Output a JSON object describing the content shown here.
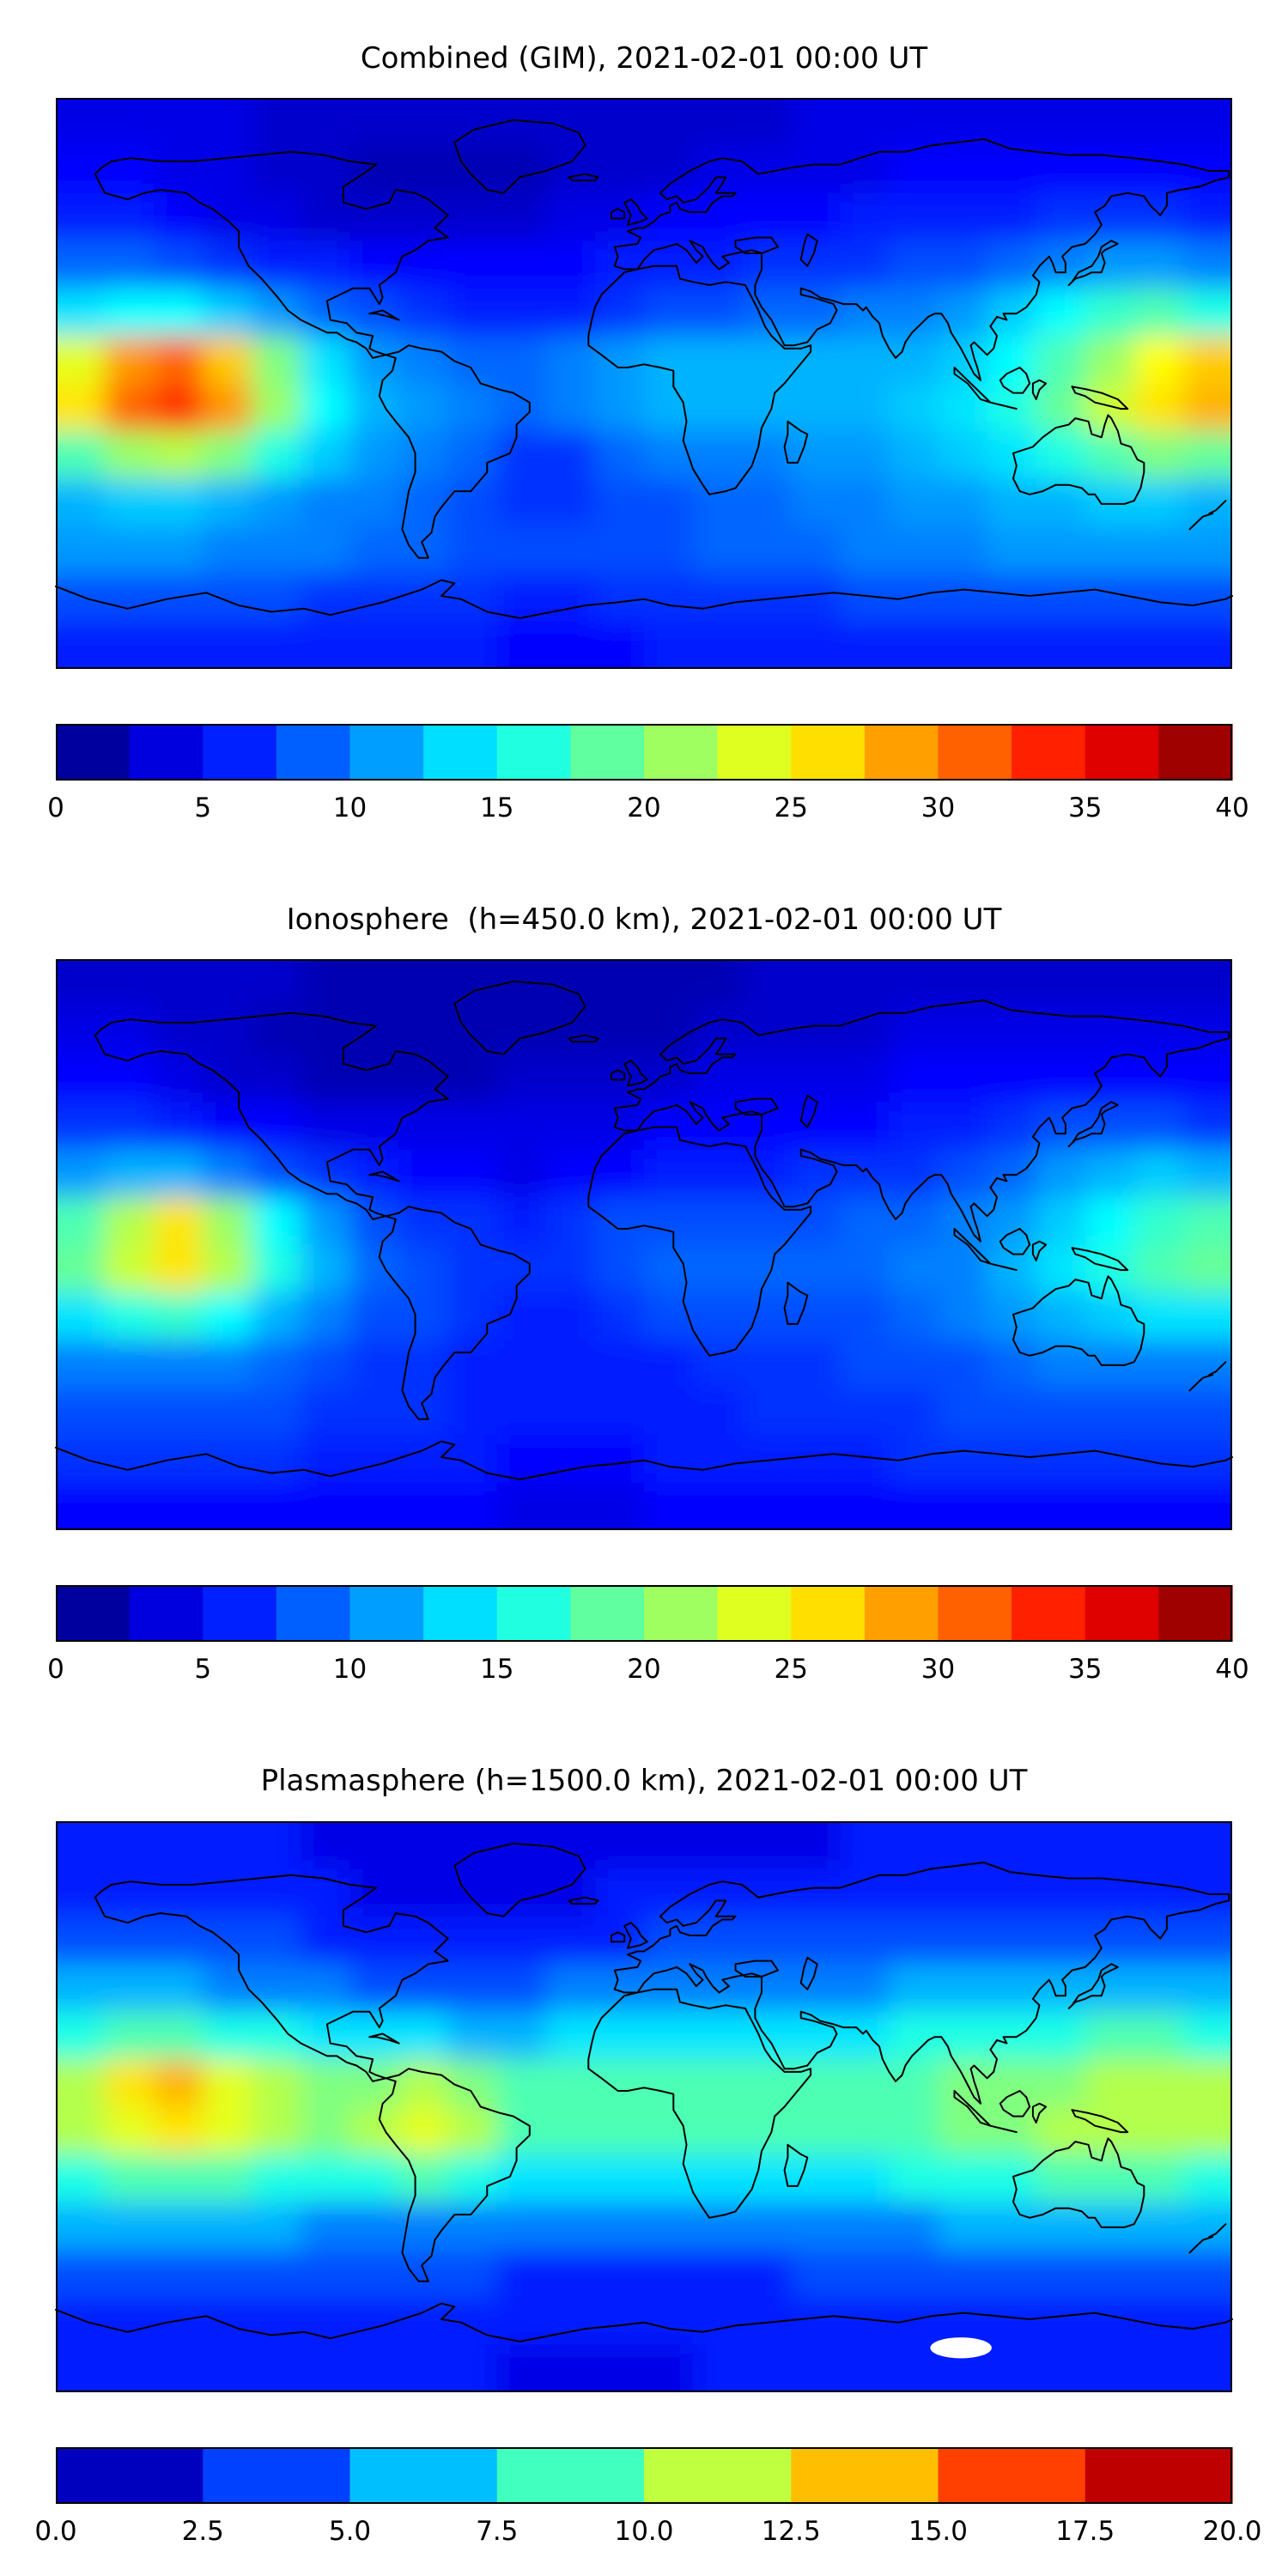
{
  "colors": {
    "background": "#ffffff",
    "coastline": "#000000",
    "text": "#000000"
  },
  "chart_data": [
    {
      "type": "heatmap",
      "title": "Combined (GIM), 2021-02-01 00:00 UT",
      "colormap": "jet",
      "projection": "equirectangular",
      "lon_range": [
        -180,
        180
      ],
      "lat_range": [
        -90,
        90
      ],
      "value_range": [
        0,
        40
      ],
      "contour_step": 2.5,
      "colorbar_segments": 16,
      "colorbar_ticks": [
        "0",
        "5",
        "10",
        "15",
        "20",
        "25",
        "30",
        "35",
        "40"
      ],
      "grid_step_deg": 15,
      "grid_rows_lat_90N_to_90S": [
        [
          4,
          4,
          4,
          4,
          3,
          3,
          3,
          3,
          3,
          3,
          3,
          3,
          3,
          3,
          3,
          4,
          4,
          4,
          4,
          4,
          4,
          4,
          4,
          4
        ],
        [
          5,
          5,
          4,
          4,
          3,
          3,
          2,
          2,
          2,
          2,
          3,
          3,
          3,
          4,
          4,
          4,
          4,
          5,
          5,
          5,
          5,
          5,
          5,
          5
        ],
        [
          6,
          6,
          5,
          4,
          4,
          3,
          3,
          3,
          3,
          3,
          4,
          4,
          5,
          5,
          5,
          5,
          6,
          6,
          6,
          6,
          7,
          7,
          7,
          6
        ],
        [
          9,
          9,
          8,
          7,
          6,
          6,
          5,
          5,
          5,
          5,
          5,
          6,
          6,
          6,
          7,
          7,
          7,
          8,
          8,
          9,
          10,
          11,
          11,
          10
        ],
        [
          14,
          15,
          15,
          13,
          11,
          9,
          8,
          7,
          6,
          6,
          6,
          7,
          8,
          8,
          9,
          9,
          10,
          10,
          11,
          13,
          15,
          17,
          18,
          16
        ],
        [
          24,
          29,
          31,
          27,
          20,
          14,
          11,
          10,
          9,
          9,
          10,
          11,
          12,
          12,
          12,
          12,
          12,
          12,
          13,
          15,
          18,
          21,
          25,
          27
        ],
        [
          26,
          31,
          33,
          29,
          21,
          15,
          12,
          11,
          10,
          9,
          10,
          11,
          12,
          12,
          12,
          12,
          12,
          13,
          14,
          16,
          19,
          23,
          26,
          28
        ],
        [
          18,
          21,
          22,
          20,
          16,
          13,
          11,
          10,
          9,
          7,
          7,
          9,
          10,
          10,
          10,
          11,
          11,
          12,
          13,
          14,
          16,
          18,
          20,
          19
        ],
        [
          12,
          13,
          13,
          12,
          11,
          10,
          10,
          9,
          8,
          7,
          7,
          8,
          8,
          9,
          9,
          10,
          10,
          11,
          11,
          12,
          12,
          13,
          13,
          12
        ],
        [
          11,
          11,
          11,
          10,
          10,
          10,
          9,
          9,
          8,
          8,
          8,
          8,
          8,
          9,
          9,
          9,
          10,
          10,
          10,
          11,
          11,
          11,
          11,
          11
        ],
        [
          8,
          8,
          8,
          8,
          8,
          7,
          7,
          7,
          7,
          6,
          6,
          7,
          7,
          7,
          7,
          7,
          8,
          8,
          8,
          8,
          8,
          8,
          8,
          8
        ],
        [
          6,
          6,
          6,
          6,
          6,
          6,
          6,
          6,
          6,
          5,
          5,
          5,
          6,
          6,
          6,
          6,
          6,
          6,
          6,
          6,
          6,
          6,
          6,
          6
        ]
      ]
    },
    {
      "type": "heatmap",
      "title": "Ionosphere  (h=450.0 km), 2021-02-01 00:00 UT",
      "colormap": "jet",
      "projection": "equirectangular",
      "lon_range": [
        -180,
        180
      ],
      "lat_range": [
        -90,
        90
      ],
      "value_range": [
        0,
        40
      ],
      "contour_step": 2.5,
      "colorbar_segments": 16,
      "colorbar_ticks": [
        "0",
        "5",
        "10",
        "15",
        "20",
        "25",
        "30",
        "35",
        "40"
      ],
      "grid_step_deg": 15,
      "grid_rows_lat_90N_to_90S": [
        [
          3,
          3,
          3,
          3,
          3,
          2,
          2,
          2,
          2,
          2,
          2,
          2,
          2,
          2,
          3,
          3,
          3,
          3,
          3,
          3,
          3,
          3,
          3,
          3
        ],
        [
          4,
          4,
          3,
          3,
          2,
          2,
          2,
          2,
          2,
          2,
          2,
          2,
          2,
          3,
          3,
          3,
          3,
          4,
          4,
          4,
          4,
          4,
          4,
          4
        ],
        [
          5,
          5,
          4,
          3,
          3,
          2,
          2,
          2,
          2,
          3,
          3,
          3,
          3,
          4,
          4,
          4,
          4,
          5,
          5,
          5,
          5,
          5,
          5,
          5
        ],
        [
          7,
          7,
          6,
          5,
          5,
          4,
          4,
          4,
          4,
          4,
          4,
          4,
          5,
          5,
          5,
          5,
          5,
          6,
          6,
          7,
          8,
          8,
          8,
          7
        ],
        [
          11,
          12,
          12,
          10,
          8,
          7,
          6,
          5,
          5,
          4,
          5,
          5,
          6,
          6,
          6,
          7,
          7,
          7,
          8,
          9,
          11,
          12,
          13,
          12
        ],
        [
          18,
          22,
          26,
          21,
          15,
          11,
          8,
          7,
          7,
          6,
          7,
          8,
          8,
          8,
          8,
          8,
          9,
          9,
          10,
          11,
          13,
          15,
          17,
          18
        ],
        [
          19,
          23,
          26,
          22,
          16,
          12,
          9,
          8,
          7,
          7,
          7,
          8,
          9,
          9,
          9,
          9,
          9,
          10,
          10,
          12,
          14,
          16,
          18,
          19
        ],
        [
          14,
          16,
          17,
          15,
          12,
          10,
          8,
          8,
          7,
          6,
          6,
          7,
          8,
          8,
          8,
          8,
          8,
          9,
          10,
          11,
          12,
          13,
          14,
          14
        ],
        [
          10,
          10,
          10,
          10,
          9,
          8,
          7,
          7,
          6,
          6,
          6,
          6,
          6,
          7,
          7,
          7,
          8,
          8,
          8,
          9,
          10,
          10,
          10,
          10
        ],
        [
          8,
          8,
          8,
          8,
          8,
          7,
          7,
          7,
          6,
          6,
          6,
          6,
          6,
          6,
          7,
          7,
          7,
          7,
          8,
          8,
          8,
          8,
          8,
          8
        ],
        [
          7,
          7,
          7,
          7,
          7,
          6,
          6,
          6,
          6,
          5,
          5,
          5,
          6,
          6,
          6,
          6,
          6,
          7,
          7,
          7,
          7,
          7,
          7,
          7
        ],
        [
          5,
          5,
          5,
          5,
          5,
          5,
          5,
          5,
          5,
          4,
          4,
          4,
          5,
          5,
          5,
          5,
          5,
          5,
          5,
          5,
          5,
          5,
          5,
          5
        ]
      ]
    },
    {
      "type": "heatmap",
      "title": "Plasmasphere (h=1500.0 km), 2021-02-01 00:00 UT",
      "colormap": "jet",
      "projection": "equirectangular",
      "lon_range": [
        -180,
        180
      ],
      "lat_range": [
        -90,
        90
      ],
      "value_range": [
        0,
        20
      ],
      "contour_step": 2.5,
      "colorbar_segments": 8,
      "colorbar_ticks": [
        "0.0",
        "2.5",
        "5.0",
        "7.5",
        "10.0",
        "12.5",
        "15.0",
        "17.5",
        "20.0"
      ],
      "grid_step_deg": 15,
      "no_data_ellipse": {
        "lon": 97,
        "lat": -76,
        "rx_deg": 9.4,
        "ry_deg": 3.3
      },
      "grid_rows_lat_90N_to_90S": [
        [
          3,
          3,
          3,
          3,
          3,
          2,
          2,
          2,
          2,
          2,
          2,
          2,
          2,
          2,
          2,
          2,
          3,
          3,
          3,
          3,
          3,
          3,
          3,
          3
        ],
        [
          3,
          3,
          3,
          3,
          3,
          3,
          2,
          2,
          2,
          2,
          2,
          3,
          3,
          3,
          3,
          3,
          3,
          3,
          3,
          3,
          3,
          3,
          3,
          3
        ],
        [
          4,
          4,
          4,
          4,
          4,
          3,
          3,
          3,
          3,
          3,
          3,
          3,
          4,
          4,
          4,
          4,
          4,
          4,
          4,
          4,
          4,
          4,
          4,
          4
        ],
        [
          6,
          6,
          6,
          5,
          5,
          5,
          4,
          4,
          4,
          4,
          5,
          5,
          5,
          5,
          5,
          5,
          5,
          6,
          6,
          6,
          6,
          6,
          6,
          6
        ],
        [
          8,
          9,
          9,
          8,
          8,
          7,
          7,
          7,
          6,
          6,
          7,
          7,
          7,
          7,
          7,
          7,
          7,
          8,
          8,
          8,
          8,
          9,
          9,
          8
        ],
        [
          11,
          13,
          14,
          12,
          11,
          10,
          10,
          11,
          10,
          9,
          9,
          9,
          9,
          9,
          9,
          9,
          9,
          9,
          10,
          10,
          10,
          11,
          11,
          11
        ],
        [
          11,
          12,
          13,
          12,
          11,
          10,
          11,
          12,
          11,
          9,
          9,
          9,
          9,
          9,
          9,
          9,
          9,
          9,
          10,
          10,
          11,
          11,
          11,
          11
        ],
        [
          8,
          9,
          9,
          9,
          8,
          8,
          8,
          9,
          8,
          7,
          7,
          7,
          7,
          7,
          7,
          7,
          7,
          8,
          8,
          8,
          9,
          9,
          9,
          8
        ],
        [
          6,
          6,
          6,
          6,
          6,
          5,
          5,
          5,
          5,
          5,
          5,
          5,
          5,
          5,
          5,
          5,
          5,
          5,
          6,
          6,
          6,
          6,
          6,
          6
        ],
        [
          4,
          4,
          4,
          4,
          4,
          4,
          4,
          4,
          4,
          3,
          3,
          3,
          3,
          3,
          3,
          4,
          4,
          4,
          4,
          4,
          4,
          4,
          4,
          4
        ],
        [
          3,
          3,
          3,
          3,
          3,
          3,
          3,
          3,
          3,
          3,
          3,
          3,
          3,
          3,
          3,
          3,
          3,
          3,
          3,
          3,
          3,
          3,
          3,
          3
        ],
        [
          3,
          3,
          3,
          3,
          3,
          3,
          3,
          3,
          3,
          2,
          2,
          2,
          2,
          3,
          3,
          3,
          3,
          3,
          3,
          3,
          3,
          3,
          3,
          3
        ]
      ]
    }
  ]
}
